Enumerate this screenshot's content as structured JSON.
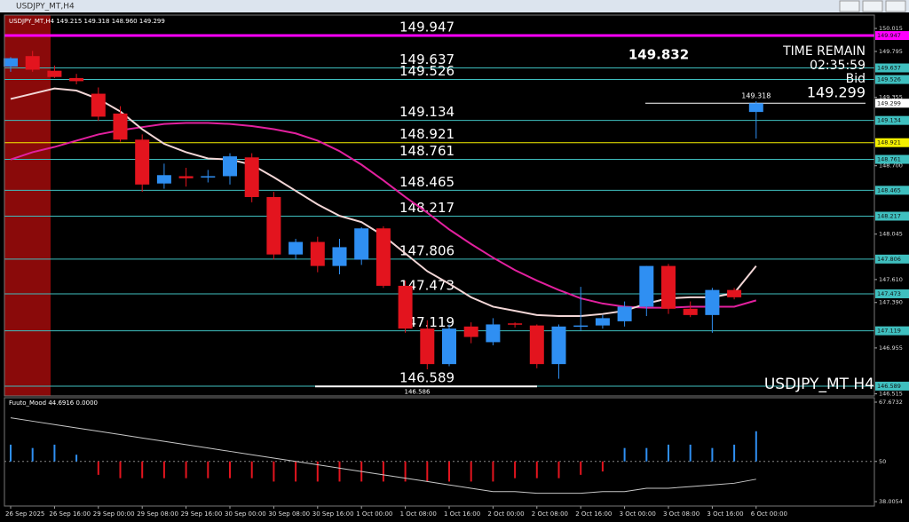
{
  "window_title": "USDJPY_MT,H4",
  "chart_data": [
    {
      "type": "candlestick",
      "title": "USDJPY_MT,H4 149.215 149.318 148.960 149.299",
      "watermark": "USDJPY_MT H4",
      "categories": [
        "26 Sep 2025",
        null,
        "26 Sep 16:00",
        null,
        "29 Sep 00:00",
        null,
        "29 Sep 08:00",
        null,
        "29 Sep 16:00",
        null,
        "30 Sep 00:00",
        null,
        "30 Sep 08:00",
        null,
        "30 Sep 16:00",
        null,
        "1 Oct 00:00",
        null,
        "1 Oct 08:00",
        null,
        "1 Oct 16:00",
        null,
        "2 Oct 00:00",
        null,
        "2 Oct 08:00",
        null,
        "2 Oct 16:00",
        null,
        "3 Oct 00:00",
        null,
        "3 Oct 08:00",
        null,
        "3 Oct 16:00",
        null,
        "6 Oct 00:00"
      ],
      "open": [
        149.65,
        149.75,
        149.61,
        149.54,
        149.39,
        149.2,
        148.95,
        148.53,
        148.6,
        148.59,
        148.6,
        148.78,
        148.4,
        147.85,
        147.97,
        147.74,
        147.8,
        148.1,
        147.55,
        147.14,
        146.8,
        147.16,
        147.01,
        147.19,
        147.17,
        146.8,
        147.16,
        147.17,
        147.21,
        147.35,
        147.74,
        147.33,
        147.27,
        147.51,
        149.215
      ],
      "high": [
        149.74,
        149.8,
        149.66,
        149.58,
        149.45,
        149.27,
        149.0,
        148.72,
        148.68,
        148.66,
        148.82,
        148.82,
        148.45,
        148.0,
        148.02,
        148.0,
        148.11,
        148.12,
        147.6,
        147.22,
        147.18,
        147.2,
        147.24,
        147.2,
        147.18,
        147.18,
        147.54,
        147.27,
        147.4,
        147.74,
        147.76,
        147.4,
        147.53,
        147.53,
        149.318
      ],
      "low": [
        149.6,
        149.6,
        149.54,
        149.48,
        149.13,
        148.93,
        148.45,
        148.48,
        148.5,
        148.54,
        148.52,
        148.35,
        147.8,
        147.8,
        147.68,
        147.66,
        147.75,
        147.53,
        147.1,
        146.75,
        146.78,
        147.0,
        146.98,
        147.15,
        146.76,
        146.66,
        147.12,
        147.14,
        147.16,
        147.26,
        147.28,
        147.25,
        147.1,
        147.42,
        148.96
      ],
      "close": [
        149.73,
        149.62,
        149.55,
        149.51,
        149.17,
        148.95,
        148.52,
        148.61,
        148.58,
        148.6,
        148.79,
        148.4,
        147.85,
        147.97,
        147.74,
        147.92,
        148.1,
        147.55,
        147.14,
        146.8,
        147.14,
        147.06,
        147.18,
        147.18,
        146.8,
        147.16,
        147.17,
        147.24,
        147.35,
        147.74,
        147.33,
        147.27,
        147.51,
        147.44,
        149.299
      ],
      "up_color": "#2f8ff2",
      "down_color": "#e3141e",
      "series": [
        {
          "color": "#e2209e",
          "values": [
            148.76,
            148.83,
            148.88,
            148.94,
            149.0,
            149.04,
            149.07,
            149.1,
            149.11,
            149.11,
            149.1,
            149.08,
            149.05,
            149.01,
            148.94,
            148.84,
            148.71,
            148.56,
            148.4,
            148.25,
            148.09,
            147.95,
            147.82,
            147.7,
            147.6,
            147.51,
            147.43,
            147.38,
            147.35,
            147.34,
            147.34,
            147.35,
            147.35,
            147.35,
            147.41
          ]
        },
        {
          "color": "#f2d6d6",
          "values": [
            149.34,
            149.39,
            149.44,
            149.42,
            149.34,
            149.22,
            149.05,
            148.91,
            148.83,
            148.77,
            148.76,
            148.71,
            148.59,
            148.46,
            148.33,
            148.22,
            148.16,
            148.03,
            147.86,
            147.69,
            147.57,
            147.44,
            147.35,
            147.31,
            147.27,
            147.26,
            147.26,
            147.28,
            147.31,
            147.38,
            147.43,
            147.44,
            147.44,
            147.48,
            147.74
          ]
        }
      ],
      "ylim": [
        146.495,
        150.143
      ],
      "yticks": [
        150.015,
        149.795,
        149.355,
        {
          "value": 148.7,
          "label": "148.700"
        },
        148.045,
        {
          "value": 147.61,
          "label": "147.610"
        },
        {
          "value": 147.39,
          "label": "147.390"
        },
        146.955,
        146.515
      ],
      "levels": [
        {
          "value": 149.947,
          "color": "#ff00ff"
        },
        {
          "value": 149.637,
          "color": "#3fbfbf"
        },
        {
          "value": 149.526,
          "color": "#3fbfbf"
        },
        {
          "value": 149.134,
          "color": "#3fbfbf"
        },
        {
          "value": 148.921,
          "color": "#f5f000"
        },
        {
          "value": 148.761,
          "color": "#3fbfbf"
        },
        {
          "value": 148.465,
          "color": "#3fbfbf"
        },
        {
          "value": 148.217,
          "color": "#3fbfbf"
        },
        {
          "value": 147.806,
          "color": "#3fbfbf"
        },
        {
          "value": 147.473,
          "color": "#3fbfbf"
        },
        {
          "value": 147.119,
          "color": "#3fbfbf"
        },
        {
          "value": 146.589,
          "color": "#3fbfbf"
        }
      ],
      "bid": {
        "label": "Bid",
        "value": 149.299,
        "color": "#ffffff"
      },
      "time_remain": {
        "label": "TIME REMAIN",
        "value": "02:35:59"
      },
      "price_mark": 149.832,
      "high_label": 149.318,
      "low_line": 146.586
    },
    {
      "type": "oscillator",
      "label": "Fuuto_Mood 44.6916 0.0000",
      "values": [
        55,
        54,
        55,
        52,
        46,
        45,
        45,
        45,
        45,
        45,
        45,
        45,
        44,
        44,
        44,
        44,
        44,
        44,
        44,
        44,
        44,
        44,
        44,
        45,
        45,
        45,
        46,
        47,
        54,
        54,
        55,
        55,
        54,
        55,
        59
      ],
      "baseline": 50,
      "up_color": "#2f8ff2",
      "down_color": "#e3141e",
      "line": {
        "color": "#c8c8c8",
        "values": [
          63,
          62,
          61,
          60,
          59,
          58,
          57,
          56,
          55,
          54,
          53,
          52,
          51,
          50,
          49,
          48,
          47,
          46,
          45,
          44,
          43,
          42,
          41,
          41,
          40.5,
          40.5,
          40.5,
          41,
          41,
          42,
          42,
          42.5,
          43,
          43.5,
          44.6916
        ]
      },
      "ylim": [
        36.7,
        69.0
      ],
      "yticks": [
        67.6732,
        50,
        38.0054
      ]
    }
  ]
}
